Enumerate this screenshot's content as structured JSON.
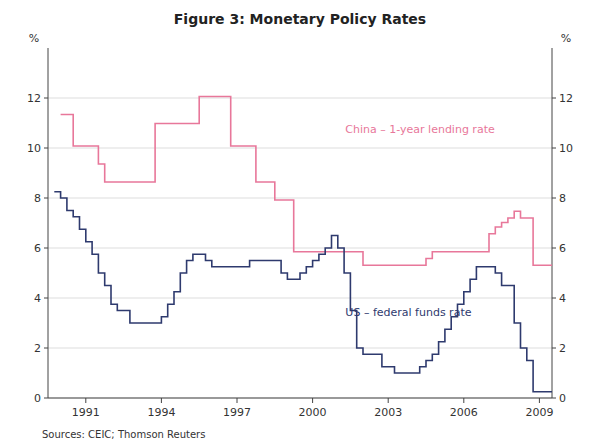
{
  "chart_data": {
    "type": "step",
    "title": "Figure 3: Monetary Policy Rates",
    "ylabel": "%",
    "y2label": "%",
    "source": "Sources: CEIC; Thomson Reuters",
    "xlim": [
      1989.5,
      2009.5
    ],
    "xticks": [
      1991,
      1994,
      1997,
      2000,
      2003,
      2006,
      2009
    ],
    "ylim": [
      0,
      14
    ],
    "yticks": [
      0,
      2,
      4,
      6,
      8,
      10,
      12
    ],
    "y2lim": [
      0,
      14
    ],
    "y2ticks": [
      0,
      2,
      4,
      6,
      8,
      10,
      12
    ],
    "grid": true,
    "series": [
      {
        "color": "#e8779a",
        "x": [
          1990.0,
          1990.5,
          1991.5,
          1991.75,
          1993.5,
          1993.75,
          1995.25,
          1995.5,
          1996.5,
          1996.75,
          1997.5,
          1997.75,
          1998.25,
          1998.5,
          1998.75,
          1999.25,
          2002.0,
          2004.0,
          2004.5,
          2004.75,
          2006.5,
          2007.0,
          2007.25,
          2007.5,
          2007.75,
          2008.0,
          2008.25,
          2008.75,
          2009.0,
          2009.5
        ],
        "values": [
          11.34,
          10.08,
          9.36,
          8.64,
          8.64,
          10.98,
          10.98,
          12.06,
          12.06,
          10.08,
          10.08,
          8.64,
          8.64,
          7.92,
          7.92,
          5.85,
          5.31,
          5.31,
          5.58,
          5.85,
          5.85,
          6.57,
          6.84,
          7.02,
          7.2,
          7.47,
          7.2,
          5.31,
          5.31,
          5.31
        ]
      },
      {
        "color": "#2e3a6e",
        "x": [
          1989.75,
          1990.0,
          1990.25,
          1990.5,
          1990.75,
          1991.0,
          1991.25,
          1991.5,
          1991.75,
          1992.0,
          1992.25,
          1992.75,
          1993.0,
          1993.5,
          1994.0,
          1994.25,
          1994.5,
          1994.75,
          1995.0,
          1995.25,
          1995.5,
          1995.75,
          1996.0,
          1996.5,
          1997.0,
          1997.5,
          1998.0,
          1998.5,
          1998.75,
          1999.0,
          1999.5,
          1999.75,
          2000.0,
          2000.25,
          2000.5,
          2000.75,
          2001.0,
          2001.25,
          2001.5,
          2001.75,
          2002.0,
          2002.75,
          2003.25,
          2004.0,
          2004.25,
          2004.5,
          2004.75,
          2005.0,
          2005.25,
          2005.5,
          2005.75,
          2006.0,
          2006.25,
          2006.5,
          2007.0,
          2007.25,
          2007.5,
          2007.75,
          2008.0,
          2008.25,
          2008.5,
          2008.75,
          2009.0,
          2009.5
        ],
        "values": [
          8.25,
          8.0,
          7.5,
          7.25,
          6.75,
          6.25,
          5.75,
          5.0,
          4.5,
          3.75,
          3.5,
          3.0,
          3.0,
          3.0,
          3.25,
          3.75,
          4.25,
          5.0,
          5.5,
          5.75,
          5.75,
          5.5,
          5.25,
          5.25,
          5.25,
          5.5,
          5.5,
          5.5,
          5.0,
          4.75,
          5.0,
          5.25,
          5.5,
          5.75,
          6.0,
          6.5,
          6.0,
          5.0,
          3.5,
          2.0,
          1.75,
          1.25,
          1.0,
          1.0,
          1.25,
          1.5,
          1.75,
          2.25,
          2.75,
          3.25,
          3.75,
          4.25,
          4.75,
          5.25,
          5.25,
          5.0,
          4.5,
          4.5,
          3.0,
          2.0,
          1.5,
          0.25,
          0.25,
          0.25
        ]
      }
    ],
    "annotations": [
      {
        "text": "China – 1-year lending rate",
        "x": 2001.3,
        "y": 10.6,
        "color": "#e8779a"
      },
      {
        "text": "US – federal funds rate",
        "x": 2001.3,
        "y": 3.3,
        "color": "#2e3a6e"
      }
    ]
  }
}
